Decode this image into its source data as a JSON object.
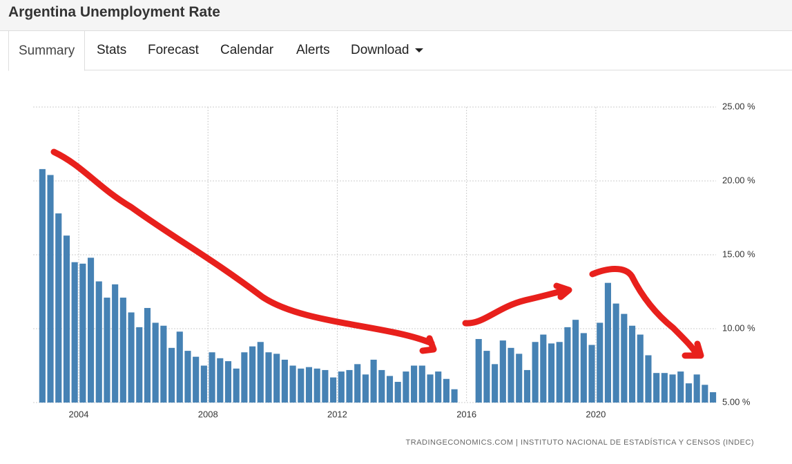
{
  "header": {
    "title": "Argentina Unemployment Rate"
  },
  "tabs": [
    "Summary",
    "Stats",
    "Forecast",
    "Calendar",
    "Alerts",
    "Download"
  ],
  "chart_data": {
    "type": "bar",
    "color": "#4682b4",
    "grid": true,
    "source": "TRADINGECONOMICS.COM  |  INSTITUTO NACIONAL DE ESTADÍSTICA Y CENSOS (INDEC)",
    "x": [
      2002.875,
      2003.125,
      2003.375,
      2003.625,
      2003.875,
      2004.125,
      2004.375,
      2004.625,
      2004.875,
      2005.125,
      2005.375,
      2005.625,
      2005.875,
      2006.125,
      2006.375,
      2006.625,
      2006.875,
      2007.125,
      2007.375,
      2007.625,
      2007.875,
      2008.125,
      2008.375,
      2008.625,
      2008.875,
      2009.125,
      2009.375,
      2009.625,
      2009.875,
      2010.125,
      2010.375,
      2010.625,
      2010.875,
      2011.125,
      2011.375,
      2011.625,
      2011.875,
      2012.125,
      2012.375,
      2012.625,
      2012.875,
      2013.125,
      2013.375,
      2013.625,
      2013.875,
      2014.125,
      2014.375,
      2014.625,
      2014.875,
      2015.125,
      2015.375,
      2015.625,
      2016.375,
      2016.625,
      2016.875,
      2017.125,
      2017.375,
      2017.625,
      2017.875,
      2018.125,
      2018.375,
      2018.625,
      2018.875,
      2019.125,
      2019.375,
      2019.625,
      2019.875,
      2020.125,
      2020.375,
      2020.625,
      2020.875,
      2021.125,
      2021.375,
      2021.625,
      2021.875,
      2022.125,
      2022.375,
      2022.625,
      2022.875,
      2023.125,
      2023.375,
      2023.625
    ],
    "values": [
      20.8,
      20.4,
      17.8,
      16.3,
      14.5,
      14.4,
      14.8,
      13.2,
      12.1,
      13.0,
      12.1,
      11.1,
      10.1,
      11.4,
      10.4,
      10.2,
      8.7,
      9.8,
      8.5,
      8.1,
      7.5,
      8.4,
      8.0,
      7.8,
      7.3,
      8.4,
      8.8,
      9.1,
      8.4,
      8.3,
      7.9,
      7.5,
      7.3,
      7.4,
      7.3,
      7.2,
      6.7,
      7.1,
      7.2,
      7.6,
      6.9,
      7.9,
      7.2,
      6.8,
      6.4,
      7.1,
      7.5,
      7.5,
      6.9,
      7.1,
      6.6,
      5.9,
      9.3,
      8.5,
      7.6,
      9.2,
      8.7,
      8.3,
      7.2,
      9.1,
      9.6,
      9.0,
      9.1,
      10.1,
      10.6,
      9.7,
      8.9,
      10.4,
      13.1,
      11.7,
      11.0,
      10.2,
      9.6,
      8.2,
      7.0,
      7.0,
      6.9,
      7.1,
      6.3,
      6.9,
      6.2,
      5.7
    ],
    "xlim": [
      2002.59,
      2023.72
    ],
    "xticks": [
      2004,
      2008,
      2012,
      2016,
      2020
    ],
    "ylim": [
      5,
      25
    ],
    "yticks": [
      {
        "value": 5,
        "label": "5.00 %"
      },
      {
        "value": 10,
        "label": "10.00 %"
      },
      {
        "value": 15,
        "label": "15.00 %"
      },
      {
        "value": 20,
        "label": "20.00 %"
      },
      {
        "value": 25,
        "label": "25.00 %"
      }
    ]
  }
}
